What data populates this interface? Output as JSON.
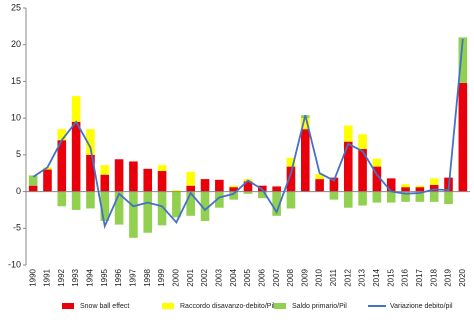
{
  "chart_data": {
    "type": "bar",
    "categories": [
      "1990",
      "1991",
      "1992",
      "1993",
      "1994",
      "1995",
      "1996",
      "1997",
      "1998",
      "1999",
      "2000",
      "2001",
      "2002",
      "2003",
      "2004",
      "2005",
      "2006",
      "2007",
      "2008",
      "2009",
      "2010",
      "2011",
      "2012",
      "2013",
      "2014",
      "2015",
      "2016",
      "2017",
      "2018",
      "2019",
      "2020"
    ],
    "series": [
      {
        "name": "Snow ball effect",
        "color": "#e8000b",
        "values": [
          0.8,
          3,
          7,
          9.5,
          5,
          2.3,
          4.4,
          4.1,
          3.1,
          2.8,
          0,
          0.8,
          1.7,
          1.6,
          0.6,
          1.4,
          0.8,
          0.7,
          3.4,
          8.5,
          1.7,
          1.9,
          6.8,
          5.8,
          3.4,
          1.8,
          0.6,
          0.6,
          0.9,
          1.9,
          14.8
        ]
      },
      {
        "name": "Raccordo disavanzo-debito/Pil",
        "color": "#ffff00",
        "values": [
          0,
          0.3,
          1.5,
          3.5,
          3.5,
          1.3,
          0,
          0,
          0,
          0.8,
          0.2,
          1.9,
          0,
          0,
          0.2,
          0.3,
          0,
          0,
          1.2,
          1.5,
          0.7,
          0,
          2.2,
          2,
          1.1,
          0,
          0.4,
          0.2,
          0.9,
          0,
          0
        ]
      },
      {
        "name": "Saldo primario/Pil",
        "color": "#92d050",
        "values": [
          1.4,
          0,
          -2,
          -2.5,
          -2.3,
          -4,
          -4.5,
          -6.3,
          -5.6,
          -4.6,
          -3.5,
          -3.3,
          -4,
          -2.2,
          -1.1,
          -0.3,
          -0.9,
          -3.3,
          -2.3,
          0.4,
          0,
          -1.1,
          -2.2,
          -1.9,
          -1.5,
          -1.5,
          -1.4,
          -1.4,
          -1.4,
          -1.7,
          6.2
        ]
      },
      {
        "name": "Variazione debito/pil",
        "color": "#4472c4",
        "type": "line",
        "values": [
          2,
          3.3,
          7,
          9.5,
          6,
          -4.7,
          -0.3,
          -2,
          -1.5,
          -2,
          -4.2,
          -0.2,
          -2.5,
          -0.8,
          -0.3,
          1.5,
          0.3,
          -2.8,
          2.5,
          10.4,
          2.5,
          1.5,
          6.5,
          5.5,
          2.3,
          0,
          -0.3,
          -0.2,
          0.3,
          0.2,
          20.8
        ]
      }
    ],
    "ylim": [
      -10,
      25
    ],
    "yticks": [
      -10,
      -5,
      0,
      5,
      10,
      15,
      20,
      25
    ],
    "legend": "bottom"
  }
}
